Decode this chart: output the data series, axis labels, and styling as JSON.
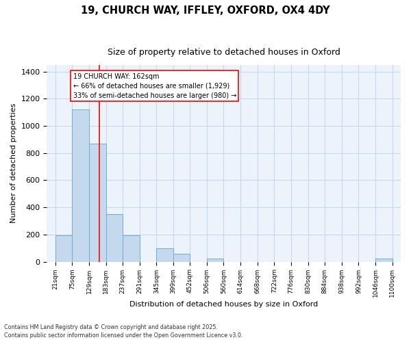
{
  "title1": "19, CHURCH WAY, IFFLEY, OXFORD, OX4 4DY",
  "title2": "Size of property relative to detached houses in Oxford",
  "xlabel": "Distribution of detached houses by size in Oxford",
  "ylabel": "Number of detached properties",
  "bar_edges": [
    21,
    75,
    129,
    183,
    237,
    291,
    345,
    399,
    452,
    506,
    560,
    614,
    668,
    722,
    776,
    830,
    884,
    938,
    992,
    1046,
    1100
  ],
  "bar_heights": [
    195,
    1120,
    870,
    350,
    195,
    0,
    100,
    60,
    0,
    25,
    0,
    0,
    0,
    0,
    0,
    0,
    0,
    0,
    0,
    25
  ],
  "bar_color": "#c5d9ee",
  "bar_edgecolor": "#6aaed6",
  "grid_color": "#c8d8eb",
  "bg_color": "#edf3fb",
  "red_line_x": 162,
  "annotation_text_line1": "19 CHURCH WAY: 162sqm",
  "annotation_text_line2": "← 66% of detached houses are smaller (1,929)",
  "annotation_text_line3": "33% of semi-detached houses are larger (980) →",
  "ylim": [
    0,
    1450
  ],
  "yticks": [
    0,
    200,
    400,
    600,
    800,
    1000,
    1200,
    1400
  ],
  "tick_labels": [
    "21sqm",
    "75sqm",
    "129sqm",
    "183sqm",
    "237sqm",
    "291sqm",
    "345sqm",
    "399sqm",
    "452sqm",
    "506sqm",
    "560sqm",
    "614sqm",
    "668sqm",
    "722sqm",
    "776sqm",
    "830sqm",
    "884sqm",
    "938sqm",
    "992sqm",
    "1046sqm",
    "1100sqm"
  ],
  "footer_line1": "Contains HM Land Registry data © Crown copyright and database right 2025.",
  "footer_line2": "Contains public sector information licensed under the Open Government Licence v3.0."
}
